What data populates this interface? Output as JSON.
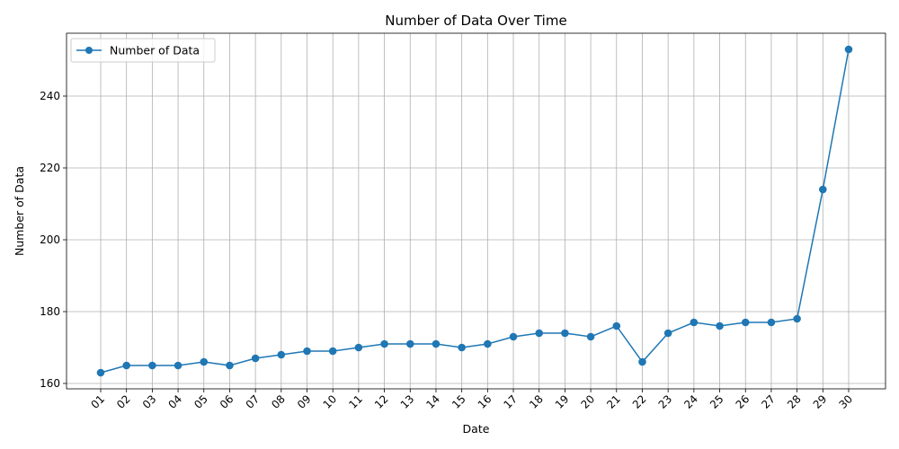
{
  "chart_data": {
    "type": "line",
    "title": "Number of Data Over Time",
    "xlabel": "Date",
    "ylabel": "Number of Data",
    "categories": [
      "01",
      "02",
      "03",
      "04",
      "05",
      "06",
      "07",
      "08",
      "09",
      "10",
      "11",
      "12",
      "13",
      "14",
      "15",
      "16",
      "17",
      "18",
      "19",
      "20",
      "21",
      "22",
      "23",
      "24",
      "25",
      "26",
      "27",
      "28",
      "29",
      "30"
    ],
    "series": [
      {
        "name": "Number of Data",
        "color": "#1f77b4",
        "marker": "circle",
        "values": [
          163,
          165,
          165,
          165,
          166,
          165,
          167,
          168,
          169,
          169,
          170,
          171,
          171,
          171,
          170,
          171,
          173,
          174,
          174,
          173,
          176,
          166,
          174,
          177,
          176,
          177,
          177,
          178,
          214,
          253
        ]
      }
    ],
    "ylim": [
      158.5,
      257.5
    ],
    "yticks": [
      160,
      180,
      200,
      220,
      240
    ],
    "grid": true,
    "legend_position": "upper-left",
    "x_tick_rotation": 45
  }
}
